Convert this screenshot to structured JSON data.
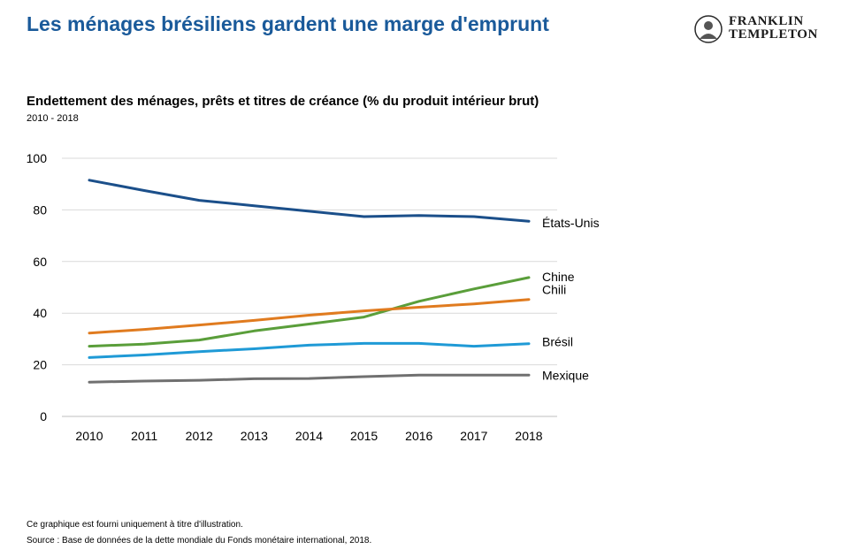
{
  "header": {
    "title": "Les ménages brésiliens gardent une marge d'emprunt",
    "logo_line1": "FRANKLIN",
    "logo_line2": "TEMPLETON"
  },
  "chart_data": {
    "type": "line",
    "title": "Endettement des ménages, prêts et titres de créance (% du produit intérieur brut)",
    "subtitle": "2010 - 2018",
    "x": [
      "2010",
      "2011",
      "2012",
      "2013",
      "2014",
      "2015",
      "2016",
      "2017",
      "2018"
    ],
    "ylim": [
      0,
      100
    ],
    "yticks": [
      0,
      20,
      40,
      60,
      80,
      100
    ],
    "grid": true,
    "legend": "labels at line ends (right)",
    "series": [
      {
        "name": "États-Unis",
        "color": "#1b4f8a",
        "values": [
          91.5,
          87.5,
          83.7,
          81.6,
          79.5,
          77.4,
          77.8,
          77.4,
          75.6
        ]
      },
      {
        "name": "Chine",
        "color": "#5a9e3a",
        "values": [
          27.2,
          28,
          29.6,
          33.1,
          35.8,
          38.5,
          44.6,
          49.4,
          53.8
        ]
      },
      {
        "name": "Chili",
        "color": "#e07b1f",
        "values": [
          32.3,
          33.7,
          35.4,
          37.2,
          39.2,
          40.9,
          42.3,
          43.6,
          45.3
        ]
      },
      {
        "name": "Brésil",
        "color": "#1f9ad6",
        "values": [
          22.8,
          23.8,
          25.1,
          26.2,
          27.6,
          28.3,
          28.3,
          27.2,
          28.2
        ]
      },
      {
        "name": "Mexique",
        "color": "#707070",
        "values": [
          13.3,
          13.7,
          14,
          14.6,
          14.7,
          15.4,
          16,
          16,
          16
        ]
      }
    ]
  },
  "footer": {
    "note": "Ce graphique est fourni uniquement à titre d'illustration.",
    "source": "Source : Base de données de la dette mondiale du Fonds monétaire international,  2018."
  }
}
